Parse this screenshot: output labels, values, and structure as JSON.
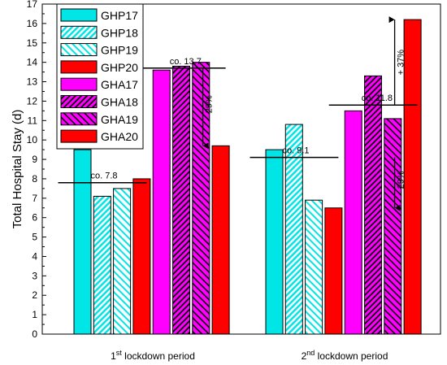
{
  "colors": {
    "cyan": "#00e5e5",
    "red": "#ff0000",
    "magenta": "#ff00ff",
    "ref_line": "#000000"
  },
  "chart_data": {
    "type": "bar",
    "ylabel": "Total Hospital Stay (d)",
    "xlabel": "",
    "ylim": [
      0,
      17
    ],
    "yticks": [
      0,
      1,
      2,
      3,
      4,
      5,
      6,
      7,
      8,
      9,
      10,
      11,
      12,
      13,
      14,
      15,
      16,
      17
    ],
    "legend_position": "top-left",
    "categories": [
      {
        "label": "1",
        "sup": "st",
        "suffix": " lockdown period"
      },
      {
        "label": "2",
        "sup": "nd",
        "suffix": " lockdown period"
      }
    ],
    "series": [
      {
        "name": "GHP17",
        "color": "#00e5e5",
        "pattern": "solid",
        "values": [
          9.5,
          9.5
        ]
      },
      {
        "name": "GHP18",
        "color": "#00e5e5",
        "pattern": "hatch-dense",
        "values": [
          7.1,
          10.8
        ]
      },
      {
        "name": "GHP19",
        "color": "#00e5e5",
        "pattern": "hatch-sparse",
        "values": [
          7.5,
          6.9
        ]
      },
      {
        "name": "GHP20",
        "color": "#ff0000",
        "pattern": "solid",
        "values": [
          8.0,
          6.5
        ]
      },
      {
        "name": "GHA17",
        "color": "#ff00ff",
        "pattern": "solid",
        "values": [
          13.6,
          11.5
        ]
      },
      {
        "name": "GHA18",
        "color": "#ff00ff",
        "pattern": "hatch-dense",
        "values": [
          13.8,
          13.3
        ]
      },
      {
        "name": "GHA19",
        "color": "#ff00ff",
        "pattern": "hatch-sparse",
        "values": [
          14.0,
          11.1
        ]
      },
      {
        "name": "GHA20",
        "color": "#ff0000",
        "pattern": "solid",
        "values": [
          9.7,
          16.2
        ]
      }
    ],
    "annotations": [
      {
        "text": "co. 7.8",
        "value": 7.8,
        "category": 0,
        "group": "GHP"
      },
      {
        "text": "co. 13.7",
        "value": 13.7,
        "category": 0,
        "group": "GHA"
      },
      {
        "text": "co. 9.1",
        "value": 9.1,
        "category": 1,
        "group": "GHP"
      },
      {
        "text": "co. 11.8",
        "value": 11.8,
        "category": 1,
        "group": "GHA"
      }
    ],
    "arrows": [
      {
        "text": "- 29%",
        "category": 0,
        "from": 13.7,
        "to": 9.7
      },
      {
        "text": "- 29%",
        "category": 1,
        "from": 9.1,
        "to": 6.5
      },
      {
        "text": "+ 37%",
        "category": 1,
        "from": 11.8,
        "to": 16.2
      }
    ]
  }
}
